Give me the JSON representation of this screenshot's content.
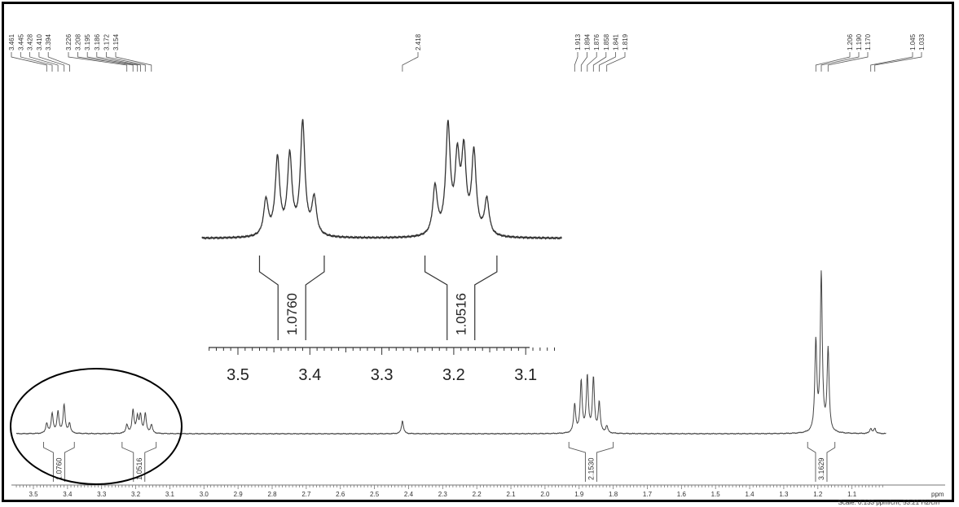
{
  "chart_data": {
    "type": "line",
    "title": "",
    "xlabel": "ppm",
    "xlim": [
      3.55,
      1.0
    ],
    "x_reversed": true,
    "grid": false,
    "peak_labels": [
      {
        "label": "3.461",
        "ppm": 3.461
      },
      {
        "label": "3.445",
        "ppm": 3.445
      },
      {
        "label": "3.428",
        "ppm": 3.428
      },
      {
        "label": "3.410",
        "ppm": 3.41
      },
      {
        "label": "3.394",
        "ppm": 3.394
      },
      {
        "label": "3.226",
        "ppm": 3.226
      },
      {
        "label": "3.208",
        "ppm": 3.208
      },
      {
        "label": "3.195",
        "ppm": 3.195
      },
      {
        "label": "3.186",
        "ppm": 3.186
      },
      {
        "label": "3.172",
        "ppm": 3.172
      },
      {
        "label": "3.154",
        "ppm": 3.154
      },
      {
        "label": "2.418",
        "ppm": 2.418
      },
      {
        "label": "1.913",
        "ppm": 1.913
      },
      {
        "label": "1.894",
        "ppm": 1.894
      },
      {
        "label": "1.876",
        "ppm": 1.876
      },
      {
        "label": "1.858",
        "ppm": 1.858
      },
      {
        "label": "1.841",
        "ppm": 1.841
      },
      {
        "label": "1.819",
        "ppm": 1.819
      },
      {
        "label": "1.206",
        "ppm": 1.206
      },
      {
        "label": "1.190",
        "ppm": 1.19
      },
      {
        "label": "1.170",
        "ppm": 1.17
      },
      {
        "label": "1.045",
        "ppm": 1.045
      },
      {
        "label": "1.033",
        "ppm": 1.033
      }
    ],
    "x_ticks": [
      "3.5",
      "3.4",
      "3.3",
      "3.2",
      "3.1",
      "3.0",
      "2.9",
      "2.8",
      "2.7",
      "2.6",
      "2.5",
      "2.4",
      "2.3",
      "2.2",
      "2.1",
      "2.0",
      "1.9",
      "1.8",
      "1.7",
      "1.6",
      "1.5",
      "1.4",
      "1.3",
      "1.2",
      "1.1"
    ],
    "x_unit_label": "ppm",
    "scale_text": "Scale: 0.133 ppm/cm, 53.21 Hz/cm",
    "integrals": [
      {
        "label": "1.0760",
        "from": 3.47,
        "to": 3.38
      },
      {
        "label": "1.0516",
        "from": 3.24,
        "to": 3.14
      },
      {
        "label": "2.1530",
        "from": 1.93,
        "to": 1.8
      },
      {
        "label": "3.1629",
        "from": 1.23,
        "to": 1.15
      }
    ],
    "peaks": [
      {
        "ppm": 3.461,
        "height": 0.14
      },
      {
        "ppm": 3.445,
        "height": 0.28
      },
      {
        "ppm": 3.428,
        "height": 0.3
      },
      {
        "ppm": 3.41,
        "height": 0.4
      },
      {
        "ppm": 3.394,
        "height": 0.14
      },
      {
        "ppm": 3.226,
        "height": 0.12
      },
      {
        "ppm": 3.208,
        "height": 0.32
      },
      {
        "ppm": 3.195,
        "height": 0.22
      },
      {
        "ppm": 3.186,
        "height": 0.24
      },
      {
        "ppm": 3.172,
        "height": 0.27
      },
      {
        "ppm": 3.154,
        "height": 0.12
      },
      {
        "ppm": 2.418,
        "height": 0.18
      },
      {
        "ppm": 1.913,
        "height": 0.4
      },
      {
        "ppm": 1.894,
        "height": 0.72
      },
      {
        "ppm": 1.876,
        "height": 0.78
      },
      {
        "ppm": 1.858,
        "height": 0.76
      },
      {
        "ppm": 1.841,
        "height": 0.42
      },
      {
        "ppm": 1.819,
        "height": 0.1
      },
      {
        "ppm": 1.206,
        "height": 1.25
      },
      {
        "ppm": 1.19,
        "height": 2.2
      },
      {
        "ppm": 1.17,
        "height": 1.15
      },
      {
        "ppm": 1.045,
        "height": 0.07
      },
      {
        "ppm": 1.033,
        "height": 0.07
      }
    ],
    "inset": {
      "xlim": [
        3.55,
        3.05
      ],
      "x_ticks": [
        "3.5",
        "3.4",
        "3.3",
        "3.2",
        "3.1"
      ],
      "integrals": [
        {
          "label": "1.0760",
          "from": 3.47,
          "to": 3.38
        },
        {
          "label": "1.0516",
          "from": 3.24,
          "to": 3.14
        }
      ],
      "peaks": [
        {
          "ppm": 3.461,
          "height": 0.32
        },
        {
          "ppm": 3.445,
          "height": 0.68
        },
        {
          "ppm": 3.428,
          "height": 0.7
        },
        {
          "ppm": 3.41,
          "height": 1.0
        },
        {
          "ppm": 3.394,
          "height": 0.33
        },
        {
          "ppm": 3.226,
          "height": 0.43
        },
        {
          "ppm": 3.208,
          "height": 0.95
        },
        {
          "ppm": 3.195,
          "height": 0.64
        },
        {
          "ppm": 3.186,
          "height": 0.7
        },
        {
          "ppm": 3.172,
          "height": 0.72
        },
        {
          "ppm": 3.154,
          "height": 0.32
        }
      ]
    }
  }
}
